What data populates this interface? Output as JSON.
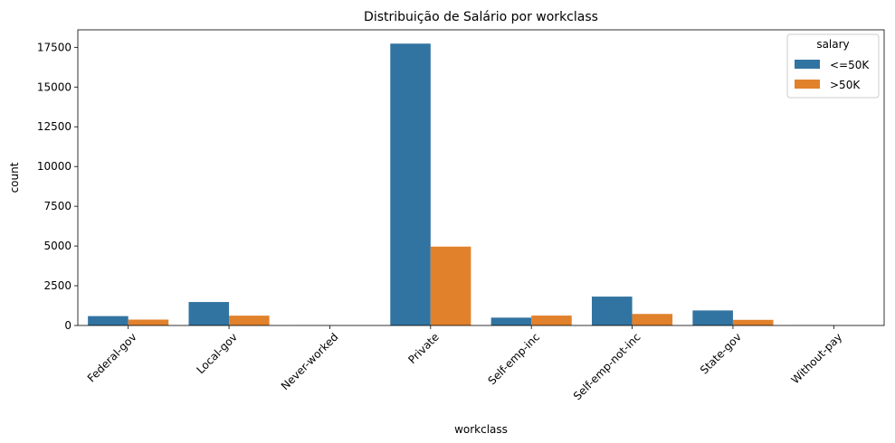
{
  "chart_data": {
    "type": "bar",
    "title": "Distribuição de Salário por workclass",
    "xlabel": "workclass",
    "ylabel": "count",
    "ylim": [
      0,
      18600
    ],
    "yticks": [
      0,
      2500,
      5000,
      7500,
      10000,
      12500,
      15000,
      17500
    ],
    "categories": [
      "Federal-gov",
      "Local-gov",
      "Never-worked",
      "Private",
      "Self-emp-inc",
      "Self-emp-not-inc",
      "State-gov",
      "Without-pay"
    ],
    "series": [
      {
        "name": "<=50K",
        "color": "#3274a1",
        "values": [
          589,
          1476,
          7,
          17733,
          494,
          1817,
          945,
          14
        ]
      },
      {
        "name": ">50K",
        "color": "#e1812c",
        "values": [
          371,
          617,
          0,
          4963,
          622,
          724,
          353,
          0
        ]
      }
    ],
    "legend": {
      "title": "salary",
      "position": "top-right"
    },
    "grid": false
  }
}
